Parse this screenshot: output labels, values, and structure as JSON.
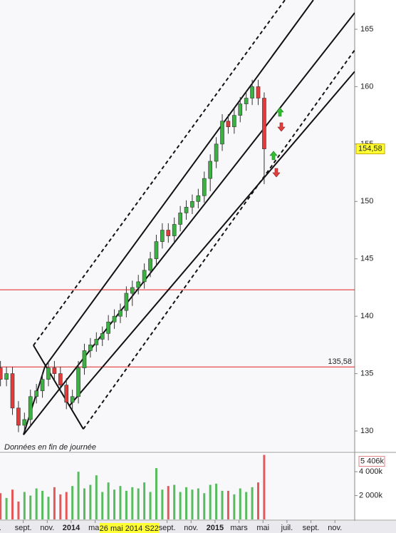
{
  "chart_data": {
    "type": "candlestick",
    "note": "Données en fin de journée",
    "x": [
      -5.9,
      -5.4,
      -4.9,
      -4.4,
      -3.9,
      -3.4,
      -2.9,
      -2.4,
      -1.9,
      -1.4,
      -0.9,
      -0.4,
      0.1,
      0.6,
      1.1,
      1.6,
      2.1,
      2.6,
      3.1,
      3.6,
      4.1,
      4.6,
      5.1,
      5.6,
      6.1,
      6.6,
      7.1,
      7.6,
      8.1,
      8.6,
      9.1,
      9.6,
      10.1,
      10.6,
      11.1,
      11.6,
      12.1,
      12.6,
      13.1,
      13.6,
      14.1,
      14.6,
      15.1,
      15.6,
      16.1
    ],
    "open": [
      135.5,
      134.5,
      135,
      132,
      130.5,
      131,
      133,
      133.5,
      134.5,
      135.5,
      135,
      134,
      132.5,
      133,
      135.5,
      137,
      137.5,
      138,
      138.5,
      139.5,
      140,
      140.5,
      142,
      142.5,
      143,
      144,
      145,
      146.5,
      147.5,
      147,
      148,
      149,
      149.5,
      150,
      150.5,
      152,
      153.5,
      155,
      157,
      156.5,
      157.5,
      158.5,
      159,
      160,
      159
    ],
    "high": [
      136.1,
      135.6,
      135.6,
      132.6,
      131.6,
      133.6,
      134.1,
      135.1,
      136.1,
      136.1,
      135.6,
      134.6,
      133.6,
      136.1,
      137.6,
      138.1,
      138.6,
      139.1,
      140.1,
      140.6,
      141.1,
      142.6,
      143.1,
      143.6,
      144.6,
      145.6,
      147.1,
      148.1,
      148.1,
      148.6,
      149.6,
      150.1,
      150.6,
      151.1,
      152.6,
      154.1,
      155.6,
      157.6,
      157.6,
      158.1,
      159.1,
      159.6,
      160.6,
      160.6,
      159.5
    ],
    "low": [
      133.9,
      133.9,
      131.4,
      129.9,
      129.9,
      130.4,
      132.4,
      132.9,
      133.9,
      134.4,
      133.4,
      131.9,
      131.9,
      132.4,
      134.9,
      136.4,
      136.9,
      137.4,
      137.9,
      138.9,
      139.4,
      139.9,
      140.9,
      141.9,
      142.4,
      143.4,
      144.4,
      145.9,
      146.4,
      146.4,
      147.4,
      148.4,
      148.9,
      149.4,
      149.9,
      150.9,
      152.9,
      154.4,
      155.9,
      155.9,
      156.9,
      157.9,
      158.4,
      158.4,
      151.5
    ],
    "close": [
      134.5,
      135,
      132,
      130.5,
      131,
      133,
      133.5,
      134.5,
      135.5,
      135,
      134,
      132.5,
      133,
      135.5,
      137,
      137.5,
      138,
      138.5,
      139.5,
      140,
      140.5,
      142,
      142.5,
      143,
      144,
      145,
      146.5,
      147.5,
      147,
      148,
      149,
      149.5,
      150,
      150.5,
      152,
      153.5,
      155,
      157,
      156.5,
      157.5,
      158.5,
      159,
      160,
      159,
      154.58
    ],
    "close_label": "154,58",
    "up_color": "#3cb043",
    "down_color": "#e03c3c",
    "xlim": [
      -5.94,
      23.65
    ],
    "ylim": [
      128.2,
      167.55
    ],
    "xticks": [
      {
        "value": -6,
        "label": "l."
      },
      {
        "value": -4,
        "label": "sept."
      },
      {
        "value": -2,
        "label": "nov."
      },
      {
        "value": 0,
        "label": "2014"
      },
      {
        "value": 2,
        "label": "mar"
      },
      {
        "value": 8,
        "label": "sept."
      },
      {
        "value": 10,
        "label": "nov."
      },
      {
        "value": 12,
        "label": "2015"
      },
      {
        "value": 14,
        "label": "mars"
      },
      {
        "value": 16,
        "label": "mai"
      },
      {
        "value": 18,
        "label": "juil."
      },
      {
        "value": 20,
        "label": "sept."
      },
      {
        "value": 22,
        "label": "nov."
      }
    ],
    "yticks": [
      130,
      135,
      140,
      145,
      150,
      155,
      160,
      165
    ],
    "cursor": {
      "value": 4.83,
      "label": "26 mai 2014 S22"
    },
    "hlines": [
      {
        "value": 142.3,
        "color": "#e02020"
      },
      {
        "value": 135.58,
        "label": "135,58",
        "color": "#e02020"
      }
    ],
    "channels": [
      {
        "points": [
          [
            -3.15,
            137.46
          ],
          [
            17.83,
            167.55
          ]
        ],
        "dashed": true
      },
      {
        "points": [
          [
            -2.2,
            135.59
          ],
          [
            20.2,
            167.55
          ]
        ],
        "dashed": false
      },
      {
        "points": [
          [
            -3.98,
            129.67
          ],
          [
            23.65,
            166.43
          ]
        ],
        "dashed": false
      },
      {
        "points": [
          [
            -0.18,
            132.16
          ],
          [
            23.65,
            161.32
          ]
        ],
        "dashed": false
      },
      {
        "points": [
          [
            1.01,
            130.17
          ],
          [
            23.65,
            163.19
          ]
        ],
        "dashed": true
      },
      {
        "points": [
          [
            -3.15,
            137.46
          ],
          [
            1.01,
            130.17
          ]
        ],
        "dashed": false
      },
      {
        "points": [
          [
            -3.98,
            129.67
          ],
          [
            -2.2,
            135.59
          ]
        ],
        "dashed": false
      }
    ],
    "volume": {
      "values": [
        2200,
        1800,
        2500,
        1500,
        2300,
        2000,
        2600,
        2400,
        1900,
        2700,
        2100,
        2300,
        2800,
        4000,
        2600,
        2900,
        3700,
        2300,
        3100,
        2500,
        2800,
        2400,
        2700,
        2600,
        3100,
        2300,
        4300,
        2500,
        2800,
        2900,
        2300,
        2700,
        2500,
        2600,
        2200,
        2900,
        3000,
        2400,
        2400,
        2100,
        2600,
        2300,
        2700,
        3100,
        5406
      ],
      "last_label": "5 406k",
      "ylim": [
        0,
        5500
      ],
      "yticks": [
        {
          "value": 2000,
          "label": "2 000k"
        },
        {
          "value": 4000,
          "label": "4 000k"
        }
      ]
    }
  }
}
